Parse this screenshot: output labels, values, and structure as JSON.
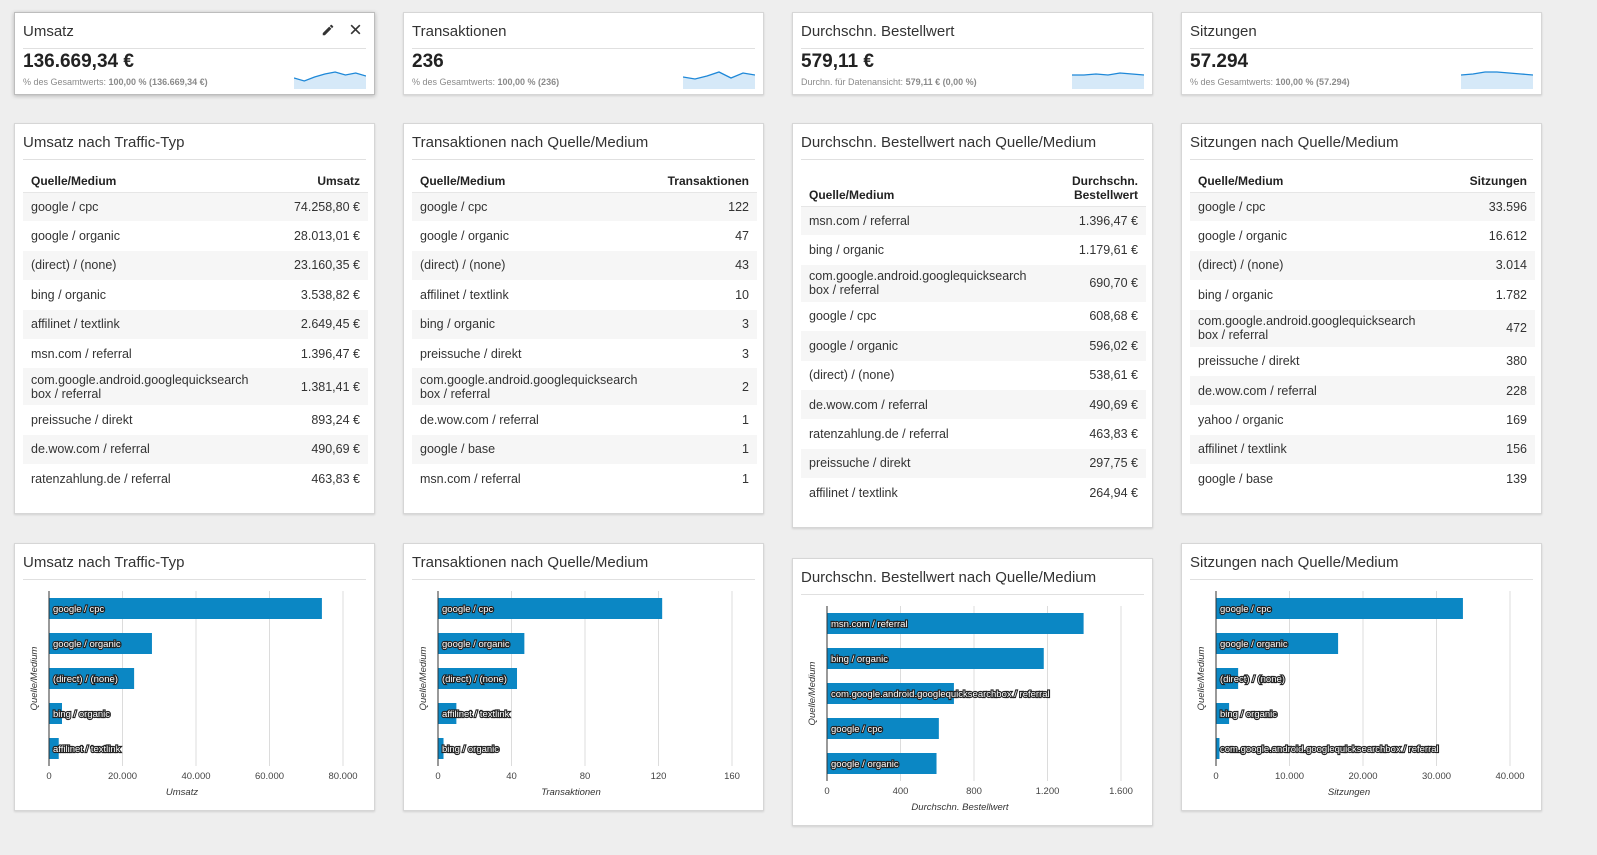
{
  "colors": {
    "bar": "#0b87c4",
    "spark_line": "#1e88d8",
    "spark_fill": "#d6e9f8"
  },
  "scorecards": [
    {
      "title": "Umsatz",
      "value": "136.669,34 €",
      "sub": "% des Gesamtwerts: ",
      "sub_bold": "100,00 % (136.669,34 €)",
      "selected": true,
      "actions": [
        "pencil-icon",
        "close-icon"
      ],
      "spark": [
        9,
        12,
        8,
        5,
        3,
        6,
        4,
        7
      ]
    },
    {
      "title": "Transaktionen",
      "value": "236",
      "sub": "% des Gesamtwerts: ",
      "sub_bold": "100,00 % (236)",
      "spark": [
        8,
        10,
        7,
        3,
        9,
        4,
        6
      ]
    },
    {
      "title": "Durchschn. Bestellwert",
      "value": "579,11 €",
      "sub": "Durchn. für Datenansicht: ",
      "sub_bold": "579,11 € (0,00 %)",
      "spark": [
        6,
        6,
        5,
        6,
        4,
        5,
        6
      ]
    },
    {
      "title": "Sitzungen",
      "value": "57.294",
      "sub": "% des Gesamtwerts: ",
      "sub_bold": "100,00 % (57.294)",
      "spark": [
        6,
        5,
        3,
        3,
        4,
        5,
        6
      ]
    }
  ],
  "tables": [
    {
      "title": "Umsatz nach Traffic-Typ",
      "col1": "Quelle/Medium",
      "col2": "Umsatz",
      "rows": [
        [
          "google / cpc",
          "74.258,80 €"
        ],
        [
          "google / organic",
          "28.013,01 €"
        ],
        [
          "(direct) / (none)",
          "23.160,35 €"
        ],
        [
          "bing / organic",
          "3.538,82 €"
        ],
        [
          "affilinet / textlink",
          "2.649,45 €"
        ],
        [
          "msn.com / referral",
          "1.396,47 €"
        ],
        [
          "com.google.android.googlequicksearch\nbox / referral",
          "1.381,41 €"
        ],
        [
          "preissuche / direkt",
          "893,24 €"
        ],
        [
          "de.wow.com / referral",
          "490,69 €"
        ],
        [
          "ratenzahlung.de / referral",
          "463,83 €"
        ]
      ]
    },
    {
      "title": "Transaktionen nach Quelle/Medium",
      "col1": "Quelle/Medium",
      "col2": "Transaktionen",
      "rows": [
        [
          "google / cpc",
          "122"
        ],
        [
          "google / organic",
          "47"
        ],
        [
          "(direct) / (none)",
          "43"
        ],
        [
          "affilinet / textlink",
          "10"
        ],
        [
          "bing / organic",
          "3"
        ],
        [
          "preissuche / direkt",
          "3"
        ],
        [
          "com.google.android.googlequicksearch\nbox / referral",
          "2"
        ],
        [
          "de.wow.com / referral",
          "1"
        ],
        [
          "google / base",
          "1"
        ],
        [
          "msn.com / referral",
          "1"
        ]
      ]
    },
    {
      "title": "Durchschn. Bestellwert nach Quelle/Medium",
      "col1": "Quelle/Medium",
      "col2": "Durchschn.\nBestellwert",
      "rows": [
        [
          "msn.com / referral",
          "1.396,47 €"
        ],
        [
          "bing / organic",
          "1.179,61 €"
        ],
        [
          "com.google.android.googlequicksearch\nbox / referral",
          "690,70 €"
        ],
        [
          "google / cpc",
          "608,68 €"
        ],
        [
          "google / organic",
          "596,02 €"
        ],
        [
          "(direct) / (none)",
          "538,61 €"
        ],
        [
          "de.wow.com / referral",
          "490,69 €"
        ],
        [
          "ratenzahlung.de / referral",
          "463,83 €"
        ],
        [
          "preissuche / direkt",
          "297,75 €"
        ],
        [
          "affilinet / textlink",
          "264,94 €"
        ]
      ]
    },
    {
      "title": "Sitzungen nach Quelle/Medium",
      "col1": "Quelle/Medium",
      "col2": "Sitzungen",
      "rows": [
        [
          "google / cpc",
          "33.596"
        ],
        [
          "google / organic",
          "16.612"
        ],
        [
          "(direct) / (none)",
          "3.014"
        ],
        [
          "bing / organic",
          "1.782"
        ],
        [
          "com.google.android.googlequicksearch\nbox / referral",
          "472"
        ],
        [
          "preissuche / direkt",
          "380"
        ],
        [
          "de.wow.com / referral",
          "228"
        ],
        [
          "yahoo / organic",
          "169"
        ],
        [
          "affilinet / textlink",
          "156"
        ],
        [
          "google / base",
          "139"
        ]
      ]
    }
  ],
  "chart_data": [
    {
      "type": "bar",
      "orientation": "horizontal",
      "title": "Umsatz nach Traffic-Typ",
      "xlabel": "Umsatz",
      "ylabel": "Quelle/Medium",
      "categories": [
        "google / cpc",
        "google / organic",
        "(direct) / (none)",
        "bing / organic",
        "affilinet / textlink"
      ],
      "values": [
        74258.8,
        28013.01,
        23160.35,
        3538.82,
        2649.45
      ],
      "xlim": [
        0,
        80000
      ],
      "ticks": [
        "0",
        "20.000",
        "40.000",
        "60.000",
        "80.000"
      ],
      "grid": true
    },
    {
      "type": "bar",
      "orientation": "horizontal",
      "title": "Transaktionen nach Quelle/Medium",
      "xlabel": "Transaktionen",
      "ylabel": "Quelle/Medium",
      "categories": [
        "google / cpc",
        "google / organic",
        "(direct) / (none)",
        "affilinet / textlink",
        "bing / organic"
      ],
      "values": [
        122,
        47,
        43,
        10,
        3
      ],
      "xlim": [
        0,
        160
      ],
      "ticks": [
        "0",
        "40",
        "80",
        "120",
        "160"
      ],
      "grid": true
    },
    {
      "type": "bar",
      "orientation": "horizontal",
      "title": "Durchschn. Bestellwert nach Quelle/Medium",
      "xlabel": "Durchschn. Bestellwert",
      "ylabel": "Quelle/Medium",
      "categories": [
        "msn.com / referral",
        "bing / organic",
        "com.google.android.googlequicksearchbox / referral",
        "google / cpc",
        "google / organic"
      ],
      "values": [
        1396.47,
        1179.61,
        690.7,
        608.68,
        596.02
      ],
      "xlim": [
        0,
        1600
      ],
      "ticks": [
        "0",
        "400",
        "800",
        "1.200",
        "1.600"
      ],
      "grid": true
    },
    {
      "type": "bar",
      "orientation": "horizontal",
      "title": "Sitzungen nach Quelle/Medium",
      "xlabel": "Sitzungen",
      "ylabel": "Quelle/Medium",
      "categories": [
        "google / cpc",
        "google / organic",
        "(direct) / (none)",
        "bing / organic",
        "com.google.android.googlequicksearchbox / referral"
      ],
      "values": [
        33596,
        16612,
        3014,
        1782,
        472
      ],
      "xlim": [
        0,
        40000
      ],
      "ticks": [
        "0",
        "10.000",
        "20.000",
        "30.000",
        "40.000"
      ],
      "grid": true
    }
  ]
}
